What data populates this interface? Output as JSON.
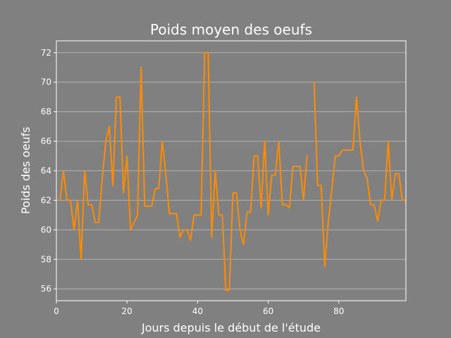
{
  "chart_data": {
    "type": "line",
    "title": "Poids moyen des oeufs",
    "xlabel": "Jours depuis le début de l'étude",
    "ylabel": "Poids des oeufs",
    "xlim": [
      0,
      99
    ],
    "ylim": [
      55.2,
      72.8
    ],
    "xticks": [
      0,
      20,
      40,
      60,
      80
    ],
    "yticks": [
      56,
      58,
      60,
      62,
      64,
      66,
      68,
      70,
      72
    ],
    "grid": "horizontal",
    "colors": {
      "background": "#808080",
      "line": "#ff8c00",
      "grid": "#b0b0b0",
      "text": "#ffffff"
    },
    "series": [
      {
        "segments": [
          [
            [
              1,
              62
            ],
            [
              2,
              64
            ],
            [
              3,
              62
            ],
            [
              4,
              62
            ],
            [
              5,
              60
            ],
            [
              6,
              62
            ],
            [
              7,
              58
            ],
            [
              8,
              64
            ],
            [
              9,
              61.7
            ],
            [
              10,
              61.7
            ],
            [
              11,
              60.5
            ],
            [
              12,
              60.5
            ],
            [
              13,
              63.5
            ],
            [
              14,
              66
            ],
            [
              15,
              67
            ],
            [
              16,
              63
            ],
            [
              17,
              69
            ],
            [
              18,
              69
            ],
            [
              19,
              62.5
            ],
            [
              20,
              65
            ],
            [
              21,
              60
            ],
            [
              22,
              60.5
            ],
            [
              23,
              61
            ],
            [
              24,
              71
            ],
            [
              25,
              61.6
            ],
            [
              26,
              61.6
            ],
            [
              27,
              61.6
            ],
            [
              28,
              62.8
            ],
            [
              29,
              62.8
            ],
            [
              30,
              66
            ],
            [
              31,
              63.8
            ],
            [
              32,
              61.1
            ],
            [
              33,
              61.1
            ],
            [
              34,
              61.1
            ],
            [
              35,
              59.5
            ],
            [
              36,
              60
            ],
            [
              37,
              60
            ],
            [
              38,
              59.3
            ],
            [
              39,
              61
            ],
            [
              40,
              61
            ],
            [
              41,
              61
            ],
            [
              42,
              72
            ],
            [
              43,
              72
            ],
            [
              44,
              59.5
            ],
            [
              45,
              64
            ],
            [
              46,
              61
            ],
            [
              47,
              61
            ],
            [
              48,
              55.9
            ],
            [
              49,
              55.9
            ],
            [
              50,
              62.5
            ],
            [
              51,
              62.5
            ],
            [
              52,
              60
            ],
            [
              53,
              59
            ],
            [
              54,
              61.2
            ],
            [
              55,
              61.2
            ],
            [
              56,
              65
            ],
            [
              57,
              65
            ],
            [
              58,
              61.5
            ],
            [
              59,
              66
            ],
            [
              60,
              61
            ],
            [
              61,
              63.7
            ],
            [
              62,
              63.7
            ],
            [
              63,
              66
            ],
            [
              64,
              61.7
            ],
            [
              65,
              61.7
            ],
            [
              66,
              61.5
            ],
            [
              67,
              64.3
            ],
            [
              68,
              64.3
            ],
            [
              69,
              64.3
            ],
            [
              70,
              62
            ],
            [
              71,
              65
            ]
          ],
          [
            [
              73,
              70
            ],
            [
              74,
              63
            ],
            [
              75,
              63
            ],
            [
              76,
              57.5
            ],
            [
              77,
              60.5
            ],
            [
              78,
              62.7
            ],
            [
              79,
              65
            ],
            [
              80,
              65
            ],
            [
              81,
              65.4
            ],
            [
              82,
              65.4
            ],
            [
              83,
              65.4
            ],
            [
              84,
              65.4
            ],
            [
              85,
              69
            ],
            [
              86,
              66
            ],
            [
              87,
              64
            ],
            [
              88,
              63.5
            ],
            [
              89,
              61.7
            ],
            [
              90,
              61.7
            ],
            [
              91,
              60.6
            ],
            [
              92,
              62
            ],
            [
              93,
              62
            ],
            [
              94,
              66
            ],
            [
              95,
              62
            ],
            [
              96,
              63.8
            ],
            [
              97,
              63.8
            ],
            [
              98,
              62
            ],
            [
              99,
              62
            ]
          ]
        ]
      }
    ]
  }
}
